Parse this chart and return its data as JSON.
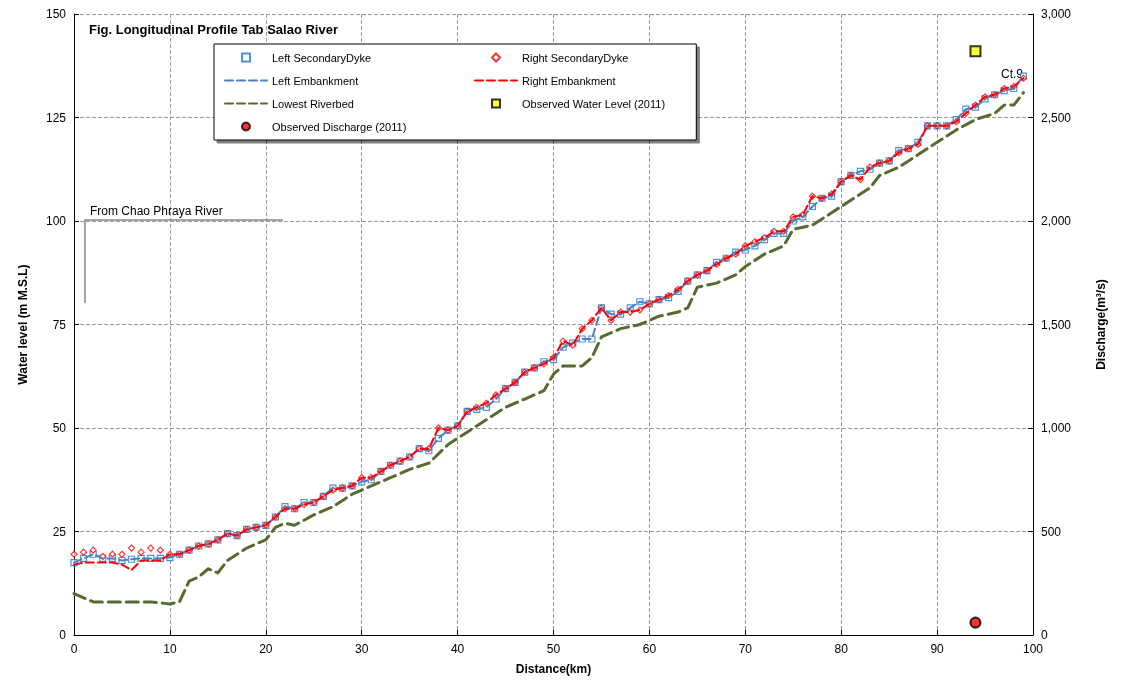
{
  "chart_data": {
    "type": "line",
    "title": "Fig. Longitudinal Profile Tab Salao River",
    "xlabel": "Distance(km)",
    "ylabel": "Water level (m M.S.L)",
    "y2label": "Discharge(m³/s)",
    "xlim": [
      0,
      100
    ],
    "xticks": [
      0,
      10,
      20,
      30,
      40,
      50,
      60,
      70,
      80,
      90,
      100
    ],
    "ylim": [
      0,
      150
    ],
    "yticks": [
      0,
      25,
      50,
      75,
      100,
      125,
      150
    ],
    "y2lim": [
      0,
      3000
    ],
    "y2ticks": [
      0,
      {
        "value": 500,
        "label": "500"
      },
      {
        "value": 1000,
        "label": "1,000"
      },
      {
        "value": 1500,
        "label": "1,500"
      },
      {
        "value": 2000,
        "label": "2,000"
      },
      {
        "value": 2500,
        "label": "2,500"
      },
      {
        "value": 3000,
        "label": "3,000"
      }
    ],
    "grid": true,
    "legend": "top",
    "x": [
      0,
      1,
      2,
      3,
      4,
      5,
      6,
      7,
      8,
      9,
      10,
      11,
      12,
      13,
      14,
      15,
      16,
      17,
      18,
      19,
      20,
      21,
      22,
      23,
      24,
      25,
      26,
      27,
      28,
      29,
      30,
      31,
      32,
      33,
      34,
      35,
      36,
      37,
      38,
      39,
      40,
      41,
      42,
      43,
      44,
      45,
      46,
      47,
      48,
      49,
      50,
      51,
      52,
      53,
      54,
      55,
      56,
      57,
      58,
      59,
      60,
      61,
      62,
      63,
      64,
      65,
      66,
      67,
      68,
      69,
      70,
      71,
      72,
      73,
      74,
      75,
      76,
      77,
      78,
      79,
      80,
      81,
      82,
      83,
      84,
      85,
      86,
      87,
      88,
      89,
      90,
      91,
      92,
      93,
      94,
      95,
      96,
      97,
      98,
      99
    ],
    "series": [
      {
        "name": "Left SecondaryDyke",
        "type": "scatter",
        "marker": "square",
        "color": "#1f78c8",
        "values": [
          17.5,
          18.5,
          19.5,
          18.5,
          18.5,
          18,
          18.3,
          18.5,
          18.5,
          18.5,
          18.7,
          19.5,
          20.5,
          21.5,
          22,
          23,
          24.5,
          24,
          25.5,
          26,
          26.5,
          28.5,
          31,
          30.5,
          32,
          32,
          33.5,
          35.5,
          35.5,
          36,
          37,
          37.5,
          39.5,
          41,
          42,
          43,
          45,
          44.5,
          47.5,
          49.5,
          50.5,
          54,
          54.5,
          55,
          57,
          59.5,
          61,
          63.5,
          64.5,
          66,
          66.5,
          69.5,
          70.5,
          71.5,
          71.5,
          79,
          77.5,
          77.5,
          79,
          80.5,
          80,
          81,
          81.5,
          83,
          85.5,
          87,
          88,
          90,
          91,
          92.5,
          93,
          94,
          95.5,
          97,
          97,
          100,
          101,
          103.5,
          105.5,
          106,
          109.5,
          111,
          112,
          112.5,
          114,
          114.5,
          117,
          117.5,
          119,
          123,
          123,
          123,
          124.5,
          127,
          127.5,
          129.5,
          130.5,
          131.5,
          132,
          135
        ]
      },
      {
        "name": "Right SecondaryDyke",
        "type": "scatter",
        "marker": "diamond",
        "color": "#ff0000",
        "values": [
          19.5,
          20,
          20.5,
          19,
          19.5,
          19.5,
          21,
          20,
          21,
          20.5,
          19.5,
          19.5,
          20.5,
          21.5,
          22,
          23,
          24.5,
          24,
          25.5,
          26,
          26.5,
          28.5,
          30.5,
          30.5,
          31.5,
          32,
          33.5,
          35,
          35.5,
          36,
          38,
          38,
          39.5,
          41,
          42,
          43,
          45,
          45,
          50,
          49.5,
          50.5,
          54,
          55,
          56,
          58,
          59.5,
          61,
          63.5,
          64.5,
          65.5,
          67,
          71,
          70,
          74,
          76,
          79,
          76,
          78,
          78,
          78.5,
          80,
          81,
          82,
          83.5,
          85.5,
          87,
          88,
          89.5,
          91,
          92,
          94,
          95,
          96,
          97.5,
          97.5,
          101,
          101.5,
          106,
          105.5,
          106.5,
          109.5,
          111,
          110,
          113,
          114,
          114.5,
          116.5,
          117.5,
          118.5,
          123,
          123,
          123,
          124,
          126,
          128,
          130,
          130.5,
          132,
          132.5,
          134.5
        ]
      },
      {
        "name": "Left Embankment",
        "marker": "none",
        "line_style": "dashed",
        "color": "#4a7fc4",
        "values": [
          17.5,
          18.5,
          19.5,
          18.5,
          18.5,
          18,
          18.3,
          18.5,
          18.5,
          18.5,
          18.7,
          19.5,
          20.5,
          21.5,
          22,
          23,
          24.5,
          24,
          25.5,
          26,
          26.5,
          28.5,
          31,
          30.5,
          32,
          32,
          33.5,
          35.5,
          35.5,
          36,
          37,
          37.5,
          39.5,
          41,
          42,
          43,
          45,
          44.5,
          47.5,
          49.5,
          50.5,
          54,
          54.5,
          55,
          57,
          59.5,
          61,
          63.5,
          64.5,
          66,
          66.5,
          69.5,
          70.5,
          71.5,
          71.5,
          79,
          77.5,
          77.5,
          79,
          80.5,
          80,
          81,
          81.5,
          83,
          85.5,
          87,
          88,
          90,
          91,
          92.5,
          93,
          94,
          95.5,
          97,
          97,
          100,
          101,
          103.5,
          105.5,
          106,
          109.5,
          111,
          112,
          112.5,
          114,
          114.5,
          117,
          117.5,
          119,
          123,
          123,
          123,
          124.5,
          127,
          127.5,
          129.5,
          130.5,
          131.5,
          132,
          135
        ]
      },
      {
        "name": "Right Embankment",
        "marker": "none",
        "line_style": "dashed",
        "color": "#ff0000",
        "values": [
          17,
          17.5,
          17.5,
          17.5,
          17.5,
          17,
          15.7,
          18,
          18,
          18,
          19.5,
          19.5,
          20.5,
          21.5,
          22,
          23,
          24.5,
          24,
          25.5,
          26,
          26.5,
          28.5,
          30.5,
          30.5,
          31.5,
          32,
          33.5,
          35,
          35.5,
          36,
          38,
          38,
          39.5,
          41,
          42,
          43,
          45,
          45,
          50,
          49.5,
          50.5,
          54,
          55,
          56,
          58,
          59.5,
          61,
          63.5,
          64.5,
          65.5,
          67,
          71,
          70,
          74,
          76,
          79,
          76,
          78,
          78,
          78.5,
          80,
          81,
          82,
          83.5,
          85.5,
          87,
          88,
          89.5,
          91,
          92,
          94,
          95,
          96,
          97.5,
          97.5,
          101,
          101.5,
          106,
          105.5,
          106.5,
          109.5,
          111,
          110,
          113,
          114,
          114.5,
          116.5,
          117.5,
          118.5,
          123,
          123,
          123,
          124,
          126,
          128,
          130,
          130.5,
          132,
          132.5,
          134.5
        ]
      },
      {
        "name": "Lowest Riverbed",
        "marker": "none",
        "line_style": "dashed",
        "color": "#556b2f",
        "x": [
          0,
          2,
          4,
          6,
          8,
          10,
          11,
          12,
          13,
          14,
          15,
          16,
          18,
          20,
          21,
          22,
          23,
          25,
          27,
          29,
          31,
          33,
          35,
          37,
          39,
          41,
          43,
          45,
          47,
          49,
          50,
          51,
          53,
          54,
          55,
          57,
          59,
          61,
          63,
          64,
          65,
          67,
          69,
          70,
          72,
          74,
          75,
          77,
          79,
          81,
          83,
          84,
          86,
          88,
          90,
          92,
          94,
          96,
          97,
          98,
          99
        ],
        "values": [
          10,
          8,
          8,
          8,
          8,
          7.5,
          8,
          13,
          14,
          16,
          15,
          18,
          21,
          23,
          26,
          27,
          26.5,
          29,
          31,
          34,
          36,
          38,
          40,
          41.5,
          46,
          49,
          52,
          55,
          57,
          59,
          63,
          65,
          65,
          67,
          72,
          74,
          75,
          77,
          78,
          79,
          84,
          85,
          87,
          89,
          92,
          94,
          98,
          99,
          102,
          105,
          108,
          111,
          113,
          116,
          119,
          122,
          124.5,
          126,
          128,
          128,
          131
        ]
      },
      {
        "name": "Observed Water Level (2011)",
        "type": "scatter",
        "marker": "square",
        "color": "#ffff00",
        "x": [
          94
        ],
        "values": [
          141
        ]
      },
      {
        "name": "Observed Discharge (2011)",
        "type": "scatter",
        "marker": "circle",
        "color": "#ff0000",
        "axis": "y2",
        "x": [
          94
        ],
        "values": [
          60
        ]
      }
    ],
    "annotations": [
      "Ct.9",
      "From Chao Phraya River"
    ]
  }
}
